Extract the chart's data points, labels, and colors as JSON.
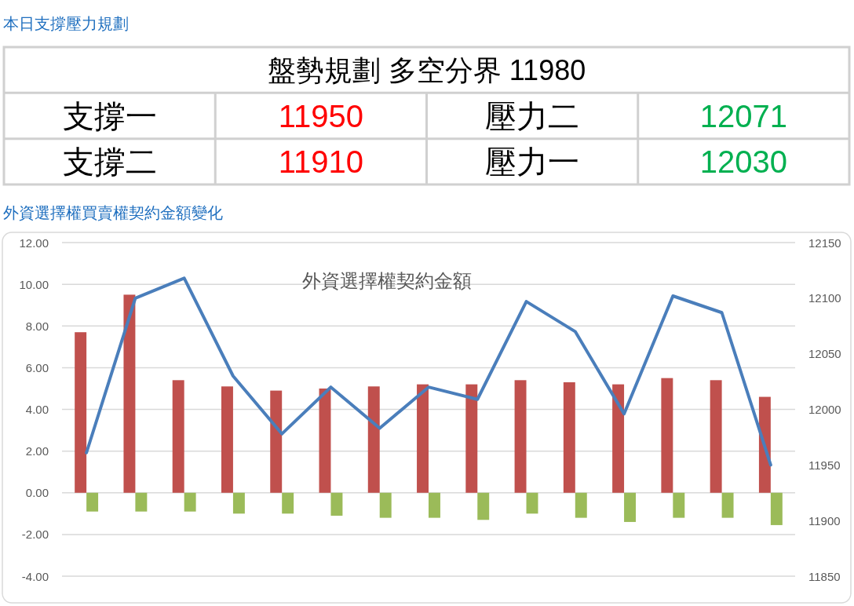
{
  "chart_data": [
    {
      "type": "other",
      "title": "本日支撐壓力規劃",
      "annotations": [
        "盤勢規劃 多空分界 11980",
        "支撐一",
        "11950",
        "壓力二",
        "12071",
        "支撐二",
        "11910",
        "壓力一",
        "12030"
      ],
      "colors": [
        "#000000",
        "#000000",
        "#ff0000",
        "#000000",
        "#00b050",
        "#000000",
        "#ff0000",
        "#000000",
        "#00b050"
      ]
    },
    {
      "type": "bar",
      "title": "外資選擇權買賣權契約金額變化",
      "subtitle": "外資選擇權契約金額",
      "categories": [
        null,
        null,
        null,
        null,
        null,
        null,
        null,
        null,
        null,
        null,
        null,
        null,
        null,
        null,
        null
      ],
      "series": [
        {
          "color": "#c0504d",
          "values": [
            7.7,
            9.5,
            5.4,
            5.1,
            4.9,
            5.0,
            5.1,
            5.2,
            5.2,
            5.4,
            5.3,
            5.2,
            5.5,
            5.4,
            4.6
          ]
        },
        {
          "color": "#9bbb59",
          "values": [
            -0.9,
            -0.9,
            -0.9,
            -1.0,
            -1.0,
            -1.1,
            -1.2,
            -1.2,
            -1.3,
            -1.0,
            -1.2,
            -1.4,
            -1.2,
            -1.2,
            -1.55
          ]
        },
        {
          "type": "line",
          "axis": "y2",
          "color": "#4a7ebb",
          "values": [
            11961,
            12100,
            12118,
            12030,
            11978,
            12020,
            11983,
            12020,
            12009,
            12097,
            12070,
            11996,
            12102,
            12087,
            11950
          ]
        }
      ],
      "ylim": [
        -4,
        12
      ],
      "yticks": [
        {
          "value": -4,
          "label": "-4.00"
        },
        {
          "value": -2,
          "label": "-2.00"
        },
        {
          "value": 0,
          "label": "0.00"
        },
        {
          "value": 2,
          "label": "2.00"
        },
        {
          "value": 4,
          "label": "4.00"
        },
        {
          "value": 6,
          "label": "6.00"
        },
        {
          "value": 8,
          "label": "8.00"
        },
        {
          "value": 10,
          "label": "10.00"
        },
        {
          "value": 12,
          "label": "12.00"
        }
      ],
      "y2lim": [
        11850,
        12150
      ],
      "y2ticks": [
        11850,
        11900,
        11950,
        12000,
        12050,
        12100,
        12150
      ],
      "grid": "y"
    }
  ]
}
